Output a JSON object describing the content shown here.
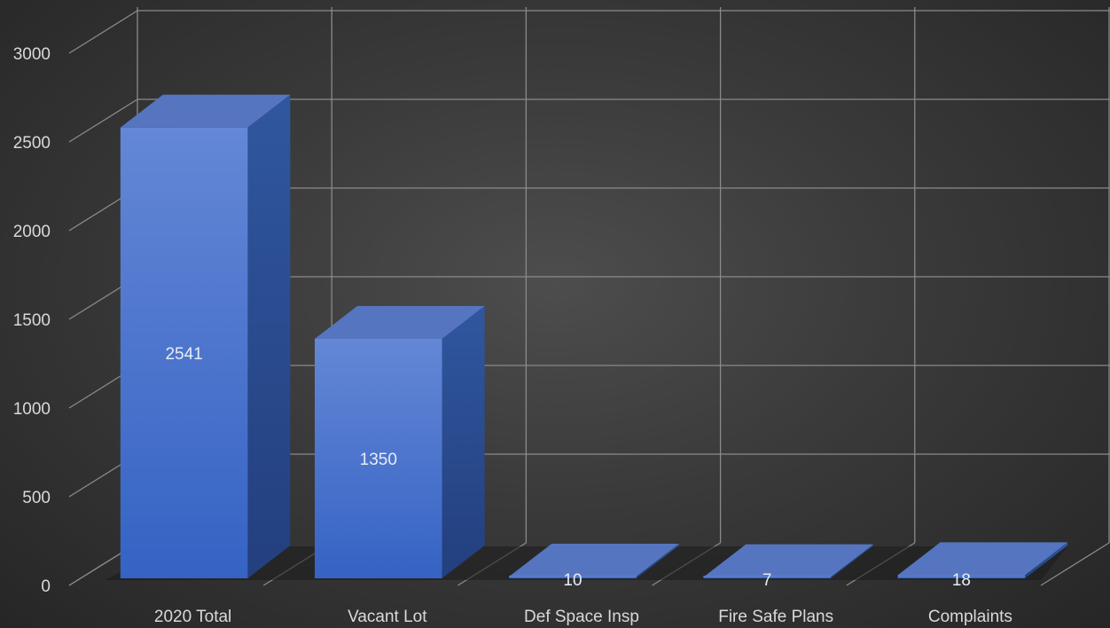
{
  "chart_data": {
    "type": "bar",
    "categories": [
      "2020 Total",
      "Vacant Lot",
      "Def Space Insp",
      "Fire Safe Plans",
      "Complaints"
    ],
    "values": [
      2541,
      1350,
      10,
      7,
      18
    ],
    "data_labels": [
      "2541",
      "1350",
      "10",
      "7",
      "18"
    ],
    "ylim": [
      0,
      3000
    ],
    "yticks": [
      0,
      500,
      1000,
      1500,
      2000,
      2500,
      3000
    ],
    "ytick_labels": [
      "0",
      "500",
      "1000",
      "1500",
      "2000",
      "2500",
      "3000"
    ],
    "grid": true,
    "style": "3d-column",
    "legend": "none",
    "title": "",
    "xlabel": "",
    "ylabel": ""
  },
  "colors": {
    "bar_front_top": "#6487d6",
    "bar_front_bottom": "#3563c4",
    "bar_side": "#284f9c",
    "bar_top": "#5675c0",
    "gridline": "#8a8a8a",
    "text": "#d9d9d9"
  }
}
